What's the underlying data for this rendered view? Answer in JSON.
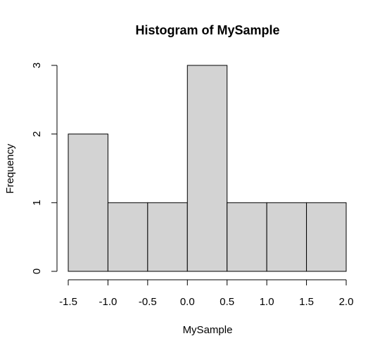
{
  "chart_data": {
    "type": "bar",
    "title": "Histogram of MySample",
    "xlabel": "MySample",
    "ylabel": "Frequency",
    "bins": [
      {
        "start": -1.5,
        "end": -1.0,
        "count": 2
      },
      {
        "start": -1.0,
        "end": -0.5,
        "count": 1
      },
      {
        "start": -0.5,
        "end": 0.0,
        "count": 1
      },
      {
        "start": 0.0,
        "end": 0.5,
        "count": 3
      },
      {
        "start": 0.5,
        "end": 1.0,
        "count": 1
      },
      {
        "start": 1.0,
        "end": 1.5,
        "count": 1
      },
      {
        "start": 1.5,
        "end": 2.0,
        "count": 1
      }
    ],
    "xlim": [
      -1.5,
      2.0
    ],
    "ylim": [
      0,
      3
    ],
    "xticks": [
      "-1.5",
      "-1.0",
      "-0.5",
      "0.0",
      "0.5",
      "1.0",
      "1.5",
      "2.0"
    ],
    "xtick_values": [
      -1.5,
      -1.0,
      -0.5,
      0.0,
      0.5,
      1.0,
      1.5,
      2.0
    ],
    "yticks": [
      "0",
      "1",
      "2",
      "3"
    ],
    "ytick_values": [
      0,
      1,
      2,
      3
    ],
    "bar_color": "#d3d3d3",
    "grid": false,
    "legend": "none"
  }
}
